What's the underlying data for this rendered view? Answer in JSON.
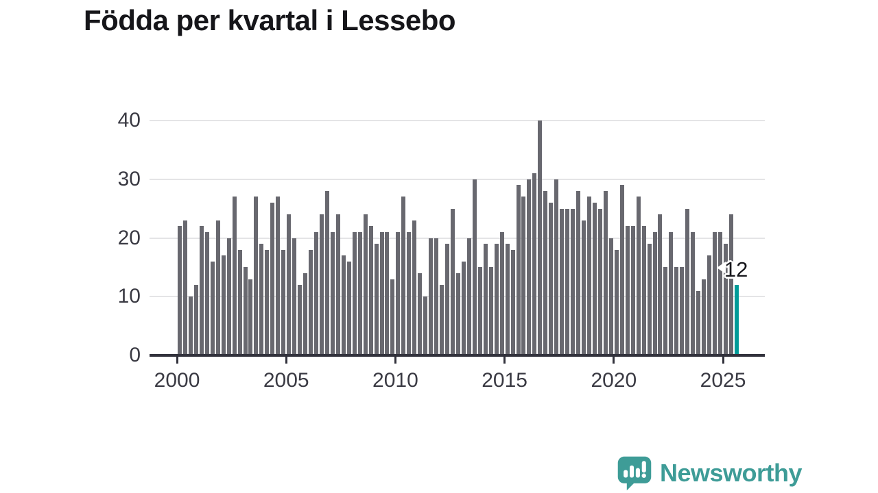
{
  "title": "Födda per kvartal i Lessebo",
  "annotation": {
    "last_value_label": "12"
  },
  "branding": {
    "name": "Newsworthy",
    "icon": "bar-chart-speech-bubble-icon"
  },
  "colors": {
    "bar": "#68686f",
    "highlight": "#009b98",
    "axis": "#32323c",
    "grid": "#e4e4e6",
    "tick_text": "#3a3a43",
    "title_text": "#16161a",
    "brand": "#3e9c97",
    "annotation_text": "#17171c",
    "annotation_halo": "#ffffff"
  },
  "chart_data": {
    "type": "bar",
    "title": "Födda per kvartal i Lessebo",
    "x_unit": "quarter",
    "x_start": "2000-Q1",
    "x_end": "2025-Q3",
    "start_year": 2000,
    "values": [
      22,
      23,
      10,
      12,
      22,
      21,
      16,
      23,
      17,
      20,
      27,
      18,
      15,
      13,
      27,
      19,
      18,
      26,
      27,
      18,
      24,
      20,
      12,
      14,
      18,
      21,
      24,
      28,
      21,
      24,
      17,
      16,
      21,
      21,
      24,
      22,
      19,
      21,
      21,
      13,
      21,
      27,
      21,
      23,
      14,
      10,
      20,
      20,
      12,
      19,
      25,
      14,
      16,
      20,
      30,
      15,
      19,
      15,
      19,
      21,
      19,
      18,
      29,
      27,
      30,
      31,
      40,
      28,
      26,
      30,
      25,
      25,
      25,
      28,
      23,
      27,
      26,
      25,
      28,
      20,
      18,
      29,
      22,
      22,
      27,
      22,
      19,
      21,
      24,
      15,
      21,
      15,
      15,
      25,
      21,
      11,
      13,
      17,
      21,
      21,
      19,
      24,
      12
    ],
    "highlight_last_bar": true,
    "last_value_label": "12",
    "x_tick_labels": [
      "2000",
      "2005",
      "2010",
      "2015",
      "2020",
      "2025"
    ],
    "y_tick_labels": [
      "0",
      "10",
      "20",
      "30",
      "40"
    ],
    "ylim": [
      0,
      40
    ],
    "grid": "horizontal",
    "legend": "none"
  }
}
